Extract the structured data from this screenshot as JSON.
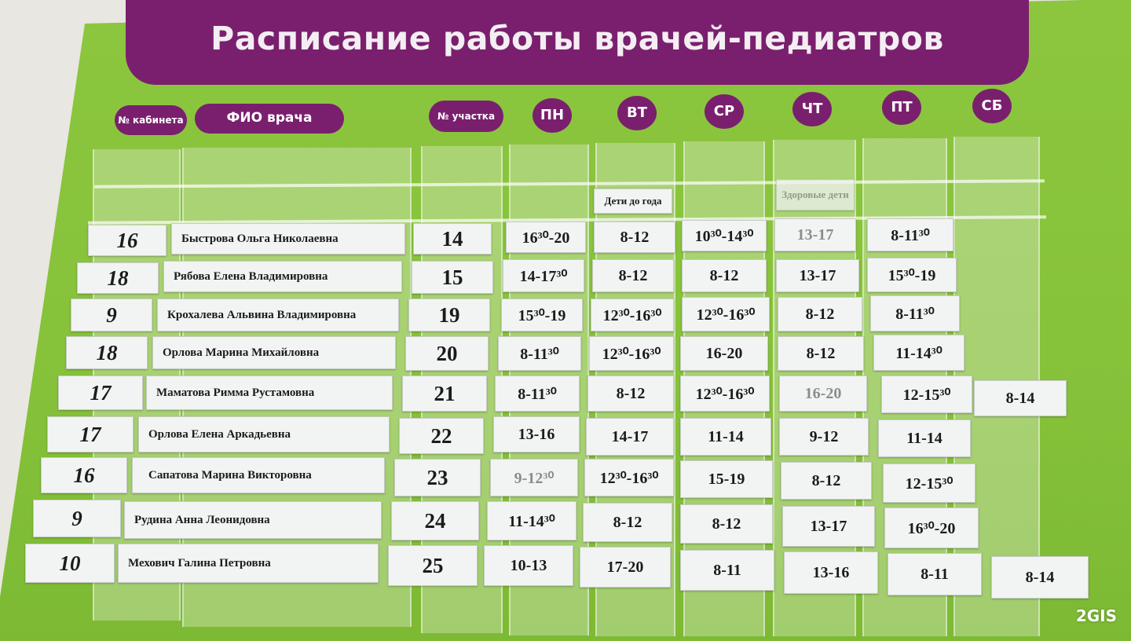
{
  "title": "Расписание работы врачей-педиатров",
  "headers": {
    "cabinet": "№ кабинета",
    "doctor": "ФИО врача",
    "uchastok": "№ участка",
    "days": [
      "ПН",
      "ВТ",
      "СР",
      "ЧТ",
      "ПТ",
      "СБ"
    ]
  },
  "notes": {
    "tuesday": "Дети до года",
    "thursday": "Здоровые дети"
  },
  "rows": [
    {
      "cabinet": "16",
      "name": "Быстрова Ольга Николаевна",
      "uchastok": "14",
      "mon": "16³⁰-20",
      "tue": "8-12",
      "wed": "10³⁰-14³⁰",
      "thu": "13-17",
      "fri": "8-11³⁰",
      "sat": ""
    },
    {
      "cabinet": "18",
      "name": "Рябова Елена Владимировна",
      "uchastok": "15",
      "mon": "14-17³⁰",
      "tue": "8-12",
      "wed": "8-12",
      "thu": "13-17",
      "fri": "15³⁰-19",
      "sat": ""
    },
    {
      "cabinet": "9",
      "name": "Крохалева Альвина Владимировна",
      "uchastok": "19",
      "mon": "15³⁰-19",
      "tue": "12³⁰-16³⁰",
      "wed": "12³⁰-16³⁰",
      "thu": "8-12",
      "fri": "8-11³⁰",
      "sat": ""
    },
    {
      "cabinet": "18",
      "name": "Орлова Марина Михайловна",
      "uchastok": "20",
      "mon": "8-11³⁰",
      "tue": "12³⁰-16³⁰",
      "wed": "16-20",
      "thu": "8-12",
      "fri": "11-14³⁰",
      "sat": ""
    },
    {
      "cabinet": "17",
      "name": "Маматова Римма Рустамовна",
      "uchastok": "21",
      "mon": "8-11³⁰",
      "tue": "8-12",
      "wed": "12³⁰-16³⁰",
      "thu": "16-20",
      "fri": "12-15³⁰",
      "sat": "8-14"
    },
    {
      "cabinet": "17",
      "name": "Орлова Елена Аркадьевна",
      "uchastok": "22",
      "mon": "13-16",
      "tue": "14-17",
      "wed": "11-14",
      "thu": "9-12",
      "fri": "11-14",
      "sat": ""
    },
    {
      "cabinet": "16",
      "name": "Сапатова Марина Викторовна",
      "uchastok": "23",
      "mon": "9-12³⁰",
      "tue": "12³⁰-16³⁰",
      "wed": "15-19",
      "thu": "8-12",
      "fri": "12-15³⁰",
      "sat": ""
    },
    {
      "cabinet": "9",
      "name": "Рудина Анна Леонидовна",
      "uchastok": "24",
      "mon": "11-14³⁰",
      "tue": "8-12",
      "wed": "8-12",
      "thu": "13-17",
      "fri": "16³⁰-20",
      "sat": ""
    },
    {
      "cabinet": "10",
      "name": "Мехович Галина Петровна",
      "uchastok": "25",
      "mon": "10-13",
      "tue": "17-20",
      "wed": "8-11",
      "thu": "13-16",
      "fri": "8-11",
      "sat": "8-14"
    }
  ],
  "watermark": "2GIS",
  "colors": {
    "board_green": "#8cc63f",
    "banner_purple": "#7a1f6e",
    "card": "#f2f4f3"
  }
}
